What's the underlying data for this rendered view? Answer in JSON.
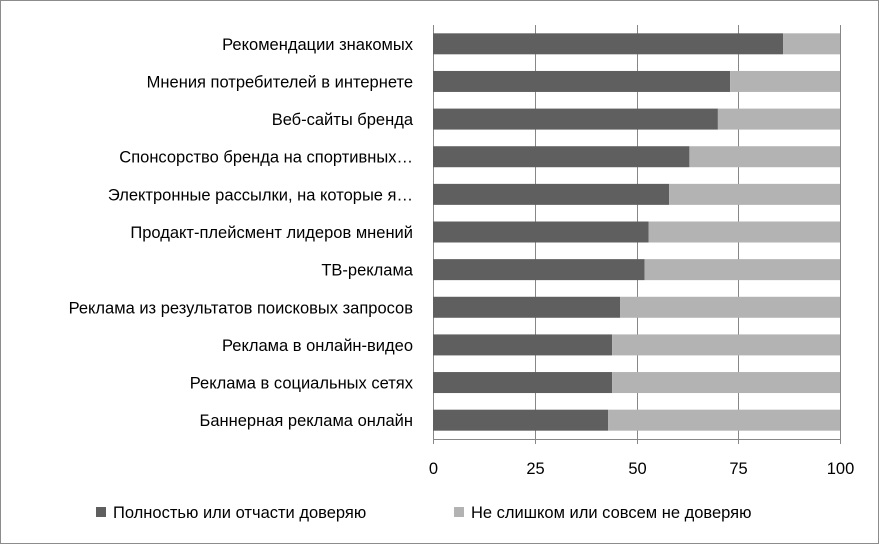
{
  "chart_data": {
    "type": "bar",
    "orientation": "horizontal",
    "stacked": true,
    "categories": [
      "Рекомендации знакомых",
      "Мнения потребителей в интернете",
      "Веб-сайты бренда",
      "Спонсорство бренда на спортивных…",
      "Электронные рассылки, на которые я…",
      "Продакт-плейсмент лидеров мнений",
      "ТВ-реклама",
      "Реклама из результатов поисковых запросов",
      "Реклама в онлайн-видео",
      "Реклама в социальных сетях",
      "Баннерная реклама онлайн"
    ],
    "series": [
      {
        "name": "Полностью или отчасти доверяю",
        "color": "#5f5f5f",
        "values": [
          86,
          73,
          70,
          63,
          58,
          53,
          52,
          46,
          44,
          44,
          43
        ]
      },
      {
        "name": "Не слишком или совсем не доверяю",
        "color": "#b3b3b3",
        "values": [
          14,
          27,
          30,
          37,
          42,
          47,
          48,
          54,
          56,
          56,
          57
        ]
      }
    ],
    "xlim": [
      0,
      100
    ],
    "xticks": [
      "0",
      "25",
      "50",
      "75",
      "100"
    ],
    "grid": "vertical",
    "legend": "bottom",
    "gridline_color": "#878787",
    "axis_color": "#878787"
  }
}
